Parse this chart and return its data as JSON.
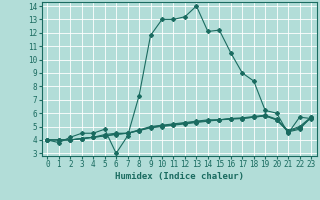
{
  "xlabel": "Humidex (Indice chaleur)",
  "ylabel": "",
  "bg_color": "#b2ddd8",
  "grid_color": "#ffffff",
  "line_color": "#1a6b60",
  "xlim": [
    -0.5,
    23.5
  ],
  "ylim": [
    2.8,
    14.3
  ],
  "xticks": [
    0,
    1,
    2,
    3,
    4,
    5,
    6,
    7,
    8,
    9,
    10,
    11,
    12,
    13,
    14,
    15,
    16,
    17,
    18,
    19,
    20,
    21,
    22,
    23
  ],
  "yticks": [
    3,
    4,
    5,
    6,
    7,
    8,
    9,
    10,
    11,
    12,
    13,
    14
  ],
  "series": [
    [
      4.0,
      3.8,
      4.2,
      4.5,
      4.5,
      4.8,
      3.0,
      4.3,
      7.3,
      11.8,
      13.0,
      13.0,
      13.2,
      14.0,
      12.1,
      12.2,
      10.5,
      9.0,
      8.4,
      6.2,
      6.0,
      4.5,
      5.7,
      5.6
    ],
    [
      4.0,
      4.0,
      4.0,
      4.1,
      4.2,
      4.3,
      4.4,
      4.5,
      4.7,
      4.9,
      5.0,
      5.1,
      5.2,
      5.3,
      5.4,
      5.5,
      5.6,
      5.6,
      5.7,
      5.8,
      5.5,
      4.6,
      4.8,
      5.7
    ],
    [
      4.0,
      4.0,
      4.0,
      4.1,
      4.2,
      4.3,
      4.45,
      4.5,
      4.7,
      4.95,
      5.05,
      5.15,
      5.25,
      5.35,
      5.45,
      5.5,
      5.55,
      5.6,
      5.7,
      5.8,
      5.5,
      4.65,
      4.9,
      5.65
    ],
    [
      4.0,
      4.0,
      4.0,
      4.1,
      4.2,
      4.4,
      4.5,
      4.5,
      4.75,
      5.0,
      5.1,
      5.2,
      5.3,
      5.4,
      5.5,
      5.5,
      5.6,
      5.65,
      5.75,
      5.85,
      5.55,
      4.7,
      5.0,
      5.7
    ]
  ],
  "marker_size": 2.0,
  "linewidth": 0.8,
  "xlabel_fontsize": 6.5,
  "tick_fontsize": 5.5
}
